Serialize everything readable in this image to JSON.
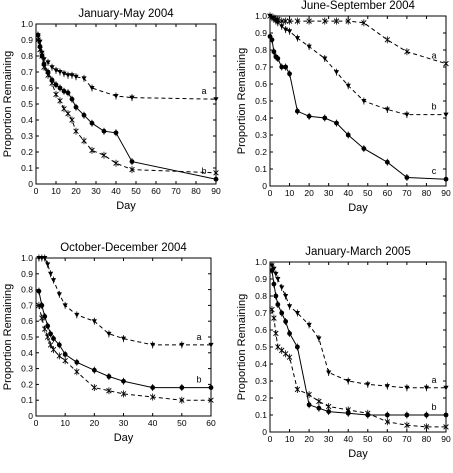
{
  "chart_data": [
    {
      "type": "line",
      "title": "January-May 2004",
      "xlabel": "Day",
      "ylabel": "Proportion Remaining",
      "xlim": [
        0,
        90
      ],
      "ylim": [
        0,
        1.0
      ],
      "xticks": [
        0,
        10,
        20,
        30,
        40,
        50,
        60,
        70,
        80,
        90
      ],
      "yticks": [
        0,
        0.1,
        0.2,
        0.3,
        0.4,
        0.5,
        0.6,
        0.7,
        0.8,
        0.9,
        1.0
      ],
      "series": [
        {
          "label": "a",
          "marker": "triangle",
          "dashed": true,
          "x": [
            1,
            2,
            3,
            4,
            6,
            8,
            10,
            12,
            14,
            16,
            18,
            20,
            24,
            28,
            40,
            48,
            90
          ],
          "y": [
            0.93,
            0.89,
            0.82,
            0.78,
            0.76,
            0.73,
            0.71,
            0.7,
            0.69,
            0.68,
            0.68,
            0.67,
            0.66,
            0.6,
            0.55,
            0.54,
            0.53
          ]
        },
        {
          "label": "b",
          "marker": "circle",
          "dashed": false,
          "x": [
            1,
            2,
            3,
            4,
            6,
            8,
            10,
            12,
            14,
            16,
            18,
            20,
            24,
            28,
            34,
            40,
            48,
            90
          ],
          "y": [
            0.93,
            0.86,
            0.8,
            0.75,
            0.7,
            0.65,
            0.62,
            0.6,
            0.58,
            0.57,
            0.53,
            0.48,
            0.43,
            0.38,
            0.33,
            0.32,
            0.14,
            0.03
          ]
        },
        {
          "label": "",
          "marker": "x",
          "dashed": true,
          "x": [
            1,
            2,
            3,
            4,
            6,
            8,
            10,
            12,
            14,
            16,
            18,
            20,
            24,
            28,
            34,
            40,
            48,
            90
          ],
          "y": [
            0.9,
            0.84,
            0.8,
            0.73,
            0.68,
            0.63,
            0.56,
            0.52,
            0.47,
            0.44,
            0.4,
            0.33,
            0.27,
            0.21,
            0.18,
            0.13,
            0.09,
            0.07
          ]
        }
      ]
    },
    {
      "type": "line",
      "title": "June-September 2004",
      "xlabel": "Day",
      "ylabel": "Proportion Remaining",
      "xlim": [
        0,
        90
      ],
      "ylim": [
        0,
        1.0
      ],
      "xticks": [
        0,
        10,
        20,
        30,
        40,
        50,
        60,
        70,
        80,
        90
      ],
      "yticks": [
        0,
        0.1,
        0.2,
        0.3,
        0.4,
        0.5,
        0.6,
        0.7,
        0.8,
        0.9,
        1.0
      ],
      "series": [
        {
          "label": "a",
          "marker": "x",
          "dashed": true,
          "x": [
            0,
            1,
            2,
            3,
            4,
            6,
            8,
            10,
            14,
            20,
            28,
            34,
            40,
            48,
            60,
            70,
            90
          ],
          "y": [
            1.0,
            0.99,
            0.99,
            0.98,
            0.98,
            0.97,
            0.97,
            0.97,
            0.97,
            0.97,
            0.97,
            0.97,
            0.97,
            0.96,
            0.86,
            0.79,
            0.72
          ]
        },
        {
          "label": "b",
          "marker": "triangle",
          "dashed": true,
          "x": [
            0,
            1,
            2,
            3,
            4,
            6,
            8,
            10,
            14,
            20,
            28,
            34,
            40,
            48,
            60,
            70,
            90
          ],
          "y": [
            1.0,
            0.99,
            0.98,
            0.97,
            0.96,
            0.94,
            0.92,
            0.91,
            0.87,
            0.82,
            0.75,
            0.67,
            0.59,
            0.5,
            0.45,
            0.42,
            0.42
          ]
        },
        {
          "label": "c",
          "marker": "circle",
          "dashed": false,
          "x": [
            0,
            1,
            2,
            3,
            4,
            6,
            8,
            10,
            14,
            20,
            28,
            34,
            40,
            48,
            60,
            70,
            90
          ],
          "y": [
            0.88,
            0.86,
            0.79,
            0.76,
            0.75,
            0.7,
            0.7,
            0.66,
            0.44,
            0.41,
            0.4,
            0.37,
            0.3,
            0.22,
            0.14,
            0.05,
            0.04
          ]
        }
      ]
    },
    {
      "type": "line",
      "title": "October-December 2004",
      "xlabel": "Day",
      "ylabel": "Proportion Remaining",
      "xlim": [
        0,
        60
      ],
      "ylim": [
        0,
        1.0
      ],
      "xticks": [
        0,
        10,
        20,
        30,
        40,
        50,
        60
      ],
      "yticks": [
        0,
        0.1,
        0.2,
        0.3,
        0.4,
        0.5,
        0.6,
        0.7,
        0.8,
        0.9,
        1.0
      ],
      "series": [
        {
          "label": "a",
          "marker": "triangle",
          "dashed": true,
          "x": [
            1,
            2,
            3,
            4,
            5,
            6,
            8,
            10,
            14,
            20,
            25,
            30,
            40,
            50,
            60
          ],
          "y": [
            1.0,
            1.0,
            1.0,
            0.96,
            0.9,
            0.86,
            0.77,
            0.7,
            0.64,
            0.6,
            0.52,
            0.49,
            0.45,
            0.45,
            0.45
          ]
        },
        {
          "label": "b",
          "marker": "circle",
          "dashed": false,
          "x": [
            1,
            2,
            3,
            4,
            5,
            6,
            8,
            10,
            14,
            20,
            25,
            30,
            40,
            50,
            60
          ],
          "y": [
            0.79,
            0.7,
            0.63,
            0.57,
            0.52,
            0.49,
            0.45,
            0.39,
            0.34,
            0.29,
            0.25,
            0.22,
            0.18,
            0.18,
            0.18
          ]
        },
        {
          "label": "",
          "marker": "x",
          "dashed": true,
          "x": [
            1,
            2,
            3,
            4,
            5,
            6,
            8,
            10,
            14,
            20,
            25,
            30,
            40,
            50,
            60
          ],
          "y": [
            0.7,
            0.62,
            0.55,
            0.5,
            0.45,
            0.42,
            0.38,
            0.35,
            0.28,
            0.18,
            0.16,
            0.14,
            0.12,
            0.1,
            0.1
          ]
        }
      ]
    },
    {
      "type": "line",
      "title": "January-March 2005",
      "xlabel": "Day",
      "ylabel": "Proportion Remaining",
      "xlim": [
        0,
        90
      ],
      "ylim": [
        0,
        1.0
      ],
      "xticks": [
        0,
        10,
        20,
        30,
        40,
        50,
        60,
        70,
        80,
        90
      ],
      "yticks": [
        0,
        0.1,
        0.2,
        0.3,
        0.4,
        0.5,
        0.6,
        0.7,
        0.8,
        0.9,
        1.0
      ],
      "series": [
        {
          "label": "a",
          "marker": "triangle",
          "dashed": true,
          "x": [
            1,
            2,
            3,
            4,
            6,
            8,
            10,
            14,
            20,
            25,
            30,
            40,
            50,
            60,
            70,
            80,
            90
          ],
          "y": [
            0.98,
            0.96,
            0.93,
            0.9,
            0.85,
            0.8,
            0.74,
            0.7,
            0.63,
            0.55,
            0.35,
            0.3,
            0.28,
            0.27,
            0.26,
            0.26,
            0.26
          ]
        },
        {
          "label": "b",
          "marker": "circle",
          "dashed": false,
          "x": [
            1,
            2,
            3,
            4,
            6,
            8,
            10,
            14,
            20,
            25,
            30,
            40,
            50,
            60,
            70,
            80,
            90
          ],
          "y": [
            0.95,
            0.87,
            0.8,
            0.75,
            0.7,
            0.65,
            0.58,
            0.5,
            0.16,
            0.14,
            0.12,
            0.11,
            0.1,
            0.1,
            0.1,
            0.1,
            0.1
          ]
        },
        {
          "label": "",
          "marker": "x",
          "dashed": true,
          "x": [
            1,
            2,
            3,
            4,
            6,
            8,
            10,
            14,
            20,
            25,
            30,
            40,
            50,
            60,
            70,
            80,
            90
          ],
          "y": [
            0.72,
            0.67,
            0.58,
            0.5,
            0.48,
            0.46,
            0.44,
            0.25,
            0.22,
            0.18,
            0.15,
            0.13,
            0.11,
            0.06,
            0.04,
            0.03,
            0.03
          ]
        }
      ]
    }
  ]
}
